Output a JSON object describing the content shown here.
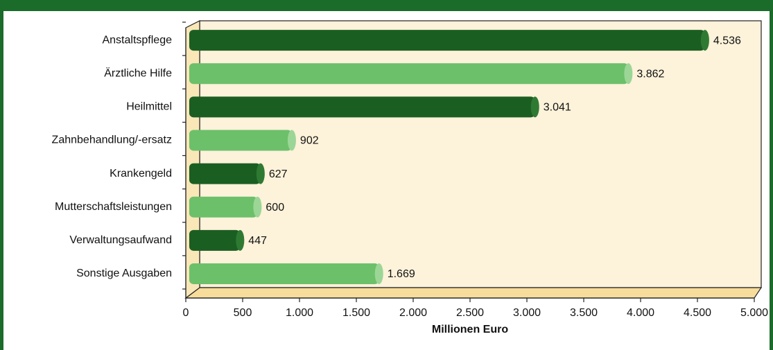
{
  "chart_data": {
    "type": "bar",
    "orientation": "horizontal",
    "categories": [
      "Anstaltspflege",
      "Ärztliche Hilfe",
      "Heilmittel",
      "Zahnbehandlung/-ersatz",
      "Krankengeld",
      "Mutterschaftsleistungen",
      "Verwaltungsaufwand",
      "Sonstige Ausgaben"
    ],
    "values": [
      4536,
      3862,
      3041,
      902,
      627,
      600,
      447,
      1669
    ],
    "value_labels": [
      "4.536",
      "3.862",
      "3.041",
      "902",
      "627",
      "600",
      "447",
      "1.669"
    ],
    "colors": [
      "#1b5e22",
      "#6cc06a",
      "#1b5e22",
      "#6cc06a",
      "#1b5e22",
      "#6cc06a",
      "#1b5e22",
      "#6cc06a"
    ],
    "xlabel": "Millionen Euro",
    "xlim": [
      0,
      5000
    ],
    "xticks": [
      0,
      500,
      {
        "value": 1000,
        "label": "1.000"
      },
      {
        "value": 1500,
        "label": "1.500"
      },
      {
        "value": 2000,
        "label": "2.000"
      },
      {
        "value": 2500,
        "label": "2.500"
      },
      {
        "value": 3000,
        "label": "3.000"
      },
      {
        "value": 3500,
        "label": "3.500"
      },
      {
        "value": 4000,
        "label": "4.000"
      },
      {
        "value": 4500,
        "label": "4.500"
      },
      {
        "value": 5000,
        "label": "5.000"
      }
    ]
  }
}
